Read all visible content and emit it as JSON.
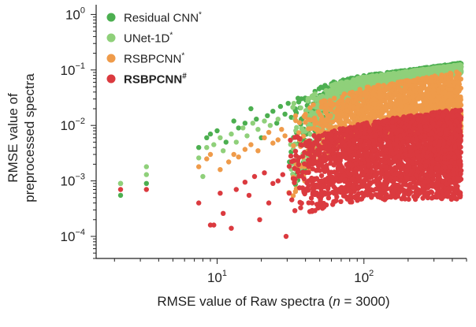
{
  "chart_data": {
    "type": "scatter",
    "title": "",
    "xlabel": "RMSE value of Raw spectra (n = 3000)",
    "xlabel_parts": {
      "prefix": "RMSE value of Raw spectra (",
      "italic": "n",
      "suffix": " = 3000)"
    },
    "ylabel_line1": "RMSE value of",
    "ylabel_line2": "preprocessed spectra",
    "x_scale": "log",
    "y_scale": "log",
    "xlim": [
      1.5,
      500
    ],
    "ylim": [
      4e-05,
      1.5
    ],
    "x_ticks": [
      {
        "base": "10",
        "exp": "1",
        "value": 10
      },
      {
        "base": "10",
        "exp": "2",
        "value": 100
      }
    ],
    "y_ticks": [
      {
        "base": "10",
        "exp": "0",
        "value": 1
      },
      {
        "base": "10",
        "exp": "−1",
        "value": 0.1
      },
      {
        "base": "10",
        "exp": "−2",
        "value": 0.01
      },
      {
        "base": "10",
        "exp": "−3",
        "value": 0.001
      },
      {
        "base": "10",
        "exp": "−4",
        "value": 0.0001
      }
    ],
    "grid": false,
    "legend_position": "top-left",
    "n_points": 3000,
    "series": [
      {
        "name": "Residual CNN*",
        "color": "#4caf50",
        "bold": false,
        "band_low": [
          [
            30,
            0.0004
          ],
          [
            60,
            0.012
          ],
          [
            100,
            0.035
          ],
          [
            200,
            0.06
          ],
          [
            460,
            0.09
          ]
        ],
        "band_high": [
          [
            30,
            0.025
          ],
          [
            60,
            0.06
          ],
          [
            100,
            0.08
          ],
          [
            200,
            0.1
          ],
          [
            460,
            0.135
          ]
        ],
        "sparse_points": [
          [
            2.2,
            0.0009
          ],
          [
            2.2,
            0.00055
          ],
          [
            3.3,
            0.0009
          ],
          [
            7.5,
            0.004
          ],
          [
            8.5,
            0.006
          ],
          [
            9,
            0.007
          ],
          [
            10,
            0.008
          ],
          [
            11.5,
            0.005
          ],
          [
            13,
            0.012
          ],
          [
            14,
            0.009
          ],
          [
            15.5,
            0.011
          ],
          [
            17,
            0.02
          ],
          [
            18.5,
            0.013
          ],
          [
            20,
            0.006
          ],
          [
            22,
            0.015
          ],
          [
            24,
            0.018
          ],
          [
            25.5,
            0.011
          ],
          [
            27,
            0.022
          ],
          [
            29,
            0.016
          ],
          [
            30.5,
            0.025
          ],
          [
            32,
            0.014
          ],
          [
            34,
            0.02
          ]
        ]
      },
      {
        "name": "UNet-1D*",
        "color": "#8fd07a",
        "bold": false,
        "band_low": [
          [
            30,
            0.0004
          ],
          [
            60,
            0.011
          ],
          [
            100,
            0.033
          ],
          [
            200,
            0.055
          ],
          [
            460,
            0.085
          ]
        ],
        "band_high": [
          [
            30,
            0.022
          ],
          [
            60,
            0.055
          ],
          [
            100,
            0.075
          ],
          [
            200,
            0.095
          ],
          [
            460,
            0.125
          ]
        ],
        "sparse_points": [
          [
            2.2,
            0.0009
          ],
          [
            3.3,
            0.0013
          ],
          [
            3.3,
            0.0018
          ],
          [
            7.5,
            0.0026
          ],
          [
            8,
            0.0012
          ],
          [
            8.5,
            0.004
          ],
          [
            9.5,
            0.0045
          ],
          [
            10.5,
            0.006
          ],
          [
            11,
            0.0035
          ],
          [
            12.5,
            0.007
          ],
          [
            13.5,
            0.005
          ],
          [
            15,
            0.009
          ],
          [
            16,
            0.0065
          ],
          [
            17.5,
            0.011
          ],
          [
            19,
            0.0085
          ],
          [
            21,
            0.012
          ],
          [
            23,
            0.01
          ],
          [
            26,
            0.013
          ]
        ]
      },
      {
        "name": "RSBPCNN*",
        "color": "#ef9b4a",
        "bold": false,
        "band_low": [
          [
            30,
            0.0004
          ],
          [
            60,
            0.0035
          ],
          [
            100,
            0.006
          ],
          [
            200,
            0.006
          ],
          [
            460,
            0.006
          ]
        ],
        "band_high": [
          [
            30,
            0.016
          ],
          [
            60,
            0.032
          ],
          [
            100,
            0.048
          ],
          [
            200,
            0.065
          ],
          [
            460,
            0.095
          ]
        ],
        "sparse_points": [
          [
            7.5,
            0.0018
          ],
          [
            8.5,
            0.0025
          ],
          [
            9,
            0.003
          ],
          [
            10.5,
            0.0016
          ],
          [
            12,
            0.0022
          ],
          [
            13,
            0.003
          ],
          [
            14,
            0.0027
          ],
          [
            15.5,
            0.0037
          ],
          [
            17,
            0.0045
          ],
          [
            19,
            0.0035
          ],
          [
            21,
            0.006
          ],
          [
            22.5,
            0.0075
          ],
          [
            24,
            0.0048
          ],
          [
            26,
            0.0055
          ],
          [
            27.5,
            0.0085
          ],
          [
            29,
            0.0065
          ]
        ]
      },
      {
        "name": "RSBPCNN#",
        "color": "#db3a3f",
        "bold": true,
        "band_low": [
          [
            30,
            0.00018
          ],
          [
            60,
            0.00035
          ],
          [
            100,
            0.00045
          ],
          [
            200,
            0.00045
          ],
          [
            460,
            0.00045
          ]
        ],
        "band_high": [
          [
            30,
            0.006
          ],
          [
            60,
            0.008
          ],
          [
            100,
            0.011
          ],
          [
            200,
            0.015
          ],
          [
            460,
            0.02
          ]
        ],
        "sparse_points": [
          [
            2.2,
            0.0007
          ],
          [
            3.3,
            0.0007
          ],
          [
            7.5,
            0.0004
          ],
          [
            9,
            0.00016
          ],
          [
            9.5,
            0.00016
          ],
          [
            10.5,
            0.0006
          ],
          [
            11,
            0.00026
          ],
          [
            12.5,
            0.00014
          ],
          [
            13.5,
            0.0007
          ],
          [
            15.5,
            0.00095
          ],
          [
            16.5,
            0.00055
          ],
          [
            18,
            0.0012
          ],
          [
            19.5,
            0.0002
          ],
          [
            21,
            0.0014
          ],
          [
            22.5,
            0.0004
          ],
          [
            24,
            0.0009
          ],
          [
            26,
            0.001
          ],
          [
            28,
            0.0013
          ],
          [
            29.5,
            0.0001
          ],
          [
            31,
            0.0006
          ],
          [
            33,
            0.0011
          ]
        ]
      }
    ]
  }
}
